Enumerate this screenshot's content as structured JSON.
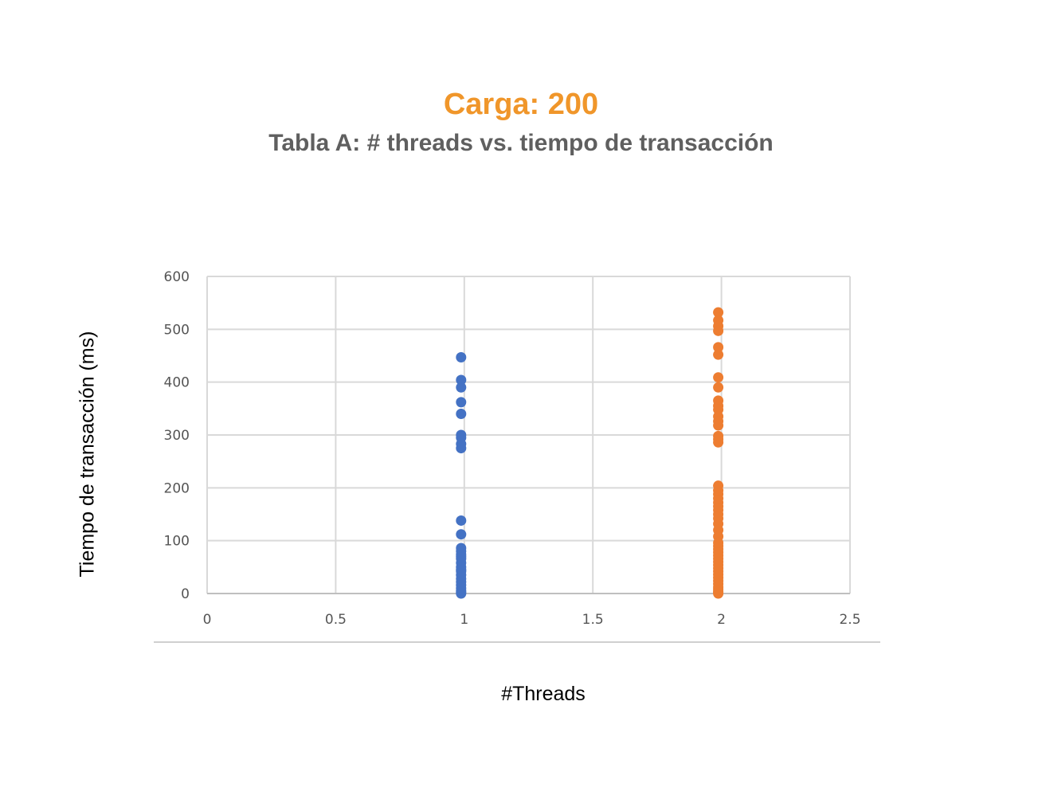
{
  "title": "Carga: 200",
  "subtitle": "Tabla A: # threads vs. tiempo de transacción",
  "chart_data": {
    "type": "scatter",
    "xlabel": "#Threads",
    "ylabel": "Tiempo de transacción (ms)",
    "xlim": [
      0,
      2.5
    ],
    "ylim": [
      0,
      600
    ],
    "xticks": [
      "0",
      "0.5",
      "1",
      "1.5",
      "2",
      "2.5"
    ],
    "yticks": [
      "0",
      "100",
      "200",
      "300",
      "400",
      "500",
      "600"
    ],
    "grid": true,
    "series": [
      {
        "color": "#4472c4",
        "x": [
          1,
          1,
          1,
          1,
          1,
          1,
          1,
          1,
          1,
          1,
          1,
          1,
          1,
          1,
          1,
          1,
          1,
          1,
          1,
          1,
          1,
          1,
          1,
          1,
          1,
          1,
          1,
          1
        ],
        "y": [
          447,
          404,
          390,
          362,
          340,
          300,
          295,
          283,
          275,
          138,
          112,
          86,
          80,
          74,
          66,
          58,
          50,
          42,
          35,
          28,
          22,
          16,
          10,
          5,
          2,
          0,
          45,
          70
        ]
      },
      {
        "color": "#ed7d31",
        "x": [
          2,
          2,
          2,
          2,
          2,
          2,
          2,
          2,
          2,
          2,
          2,
          2,
          2,
          2,
          2,
          2,
          2,
          2,
          2,
          2,
          2,
          2,
          2,
          2,
          2,
          2,
          2,
          2,
          2,
          2,
          2,
          2,
          2,
          2,
          2,
          2,
          2,
          2,
          2,
          2,
          2,
          2,
          2,
          2,
          2,
          2,
          2,
          2
        ],
        "y": [
          532,
          517,
          506,
          497,
          466,
          452,
          409,
          390,
          365,
          355,
          348,
          335,
          326,
          318,
          298,
          292,
          286,
          204,
          188,
          172,
          158,
          142,
          132,
          120,
          108,
          90,
          84,
          78,
          72,
          66,
          60,
          54,
          48,
          42,
          36,
          30,
          24,
          18,
          12,
          8,
          4,
          0,
          96,
          150,
          165,
          180,
          195,
          2
        ]
      }
    ]
  }
}
